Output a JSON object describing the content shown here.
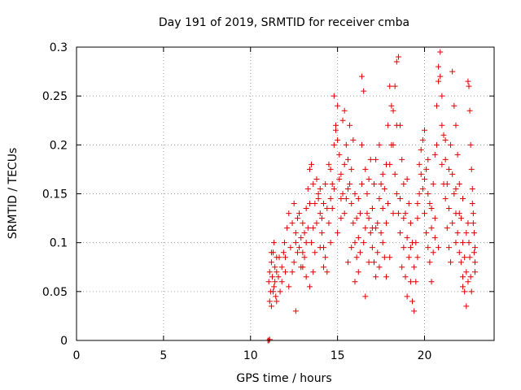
{
  "chart_data": {
    "type": "scatter",
    "title": "Day 191 of 2019, SRMTID for receiver cmba",
    "xlabel": "GPS time / hours",
    "ylabel": "SRMTID / TECUs",
    "xlim": [
      0,
      24
    ],
    "ylim": [
      0,
      0.3
    ],
    "x_ticks": [
      0,
      5,
      10,
      15,
      20
    ],
    "x_tick_labels": [
      "0",
      "5",
      "10",
      "15",
      "20"
    ],
    "y_ticks": [
      0,
      0.05,
      0.1,
      0.15,
      0.2,
      0.25,
      0.3
    ],
    "y_tick_labels": [
      "0",
      "0.05",
      "0.1",
      "0.15",
      "0.2",
      "0.25",
      "0.3"
    ],
    "grid": true,
    "marker": "plus",
    "color": "#e00000",
    "x_range_of_points": [
      11.0,
      22.9
    ],
    "points": [
      [
        11.0,
        0.0
      ],
      [
        11.05,
        0.0
      ],
      [
        11.1,
        0.001
      ],
      [
        11.05,
        0.06
      ],
      [
        11.1,
        0.07
      ],
      [
        11.15,
        0.05
      ],
      [
        11.2,
        0.08
      ],
      [
        11.25,
        0.065
      ],
      [
        11.3,
        0.09
      ],
      [
        11.35,
        0.055
      ],
      [
        11.4,
        0.075
      ],
      [
        11.45,
        0.045
      ],
      [
        11.5,
        0.07
      ],
      [
        11.1,
        0.04
      ],
      [
        11.2,
        0.035
      ],
      [
        11.3,
        0.05
      ],
      [
        11.4,
        0.06
      ],
      [
        11.5,
        0.085
      ],
      [
        11.6,
        0.065
      ],
      [
        11.7,
        0.05
      ],
      [
        11.8,
        0.075
      ],
      [
        11.9,
        0.09
      ],
      [
        12.0,
        0.07
      ],
      [
        11.2,
        0.09
      ],
      [
        11.35,
        0.1
      ],
      [
        11.5,
        0.04
      ],
      [
        11.65,
        0.085
      ],
      [
        11.8,
        0.06
      ],
      [
        11.95,
        0.1
      ],
      [
        12.1,
        0.115
      ],
      [
        12.2,
        0.13
      ],
      [
        12.3,
        0.095
      ],
      [
        12.4,
        0.12
      ],
      [
        12.5,
        0.14
      ],
      [
        12.6,
        0.11
      ],
      [
        12.7,
        0.09
      ],
      [
        12.8,
        0.13
      ],
      [
        12.9,
        0.105
      ],
      [
        13.0,
        0.12
      ],
      [
        13.1,
        0.085
      ],
      [
        13.2,
        0.1
      ],
      [
        13.3,
        0.115
      ],
      [
        13.4,
        0.14
      ],
      [
        12.5,
        0.08
      ],
      [
        12.6,
        0.1
      ],
      [
        12.7,
        0.125
      ],
      [
        12.8,
        0.095
      ],
      [
        12.9,
        0.075
      ],
      [
        13.0,
        0.09
      ],
      [
        13.1,
        0.11
      ],
      [
        13.2,
        0.135
      ],
      [
        13.3,
        0.155
      ],
      [
        13.4,
        0.175
      ],
      [
        13.5,
        0.18
      ],
      [
        13.6,
        0.16
      ],
      [
        13.7,
        0.14
      ],
      [
        13.8,
        0.12
      ],
      [
        13.9,
        0.15
      ],
      [
        14.0,
        0.13
      ],
      [
        14.1,
        0.11
      ],
      [
        14.2,
        0.095
      ],
      [
        14.3,
        0.085
      ],
      [
        14.4,
        0.07
      ],
      [
        13.5,
        0.1
      ],
      [
        13.6,
        0.115
      ],
      [
        13.7,
        0.09
      ],
      [
        13.8,
        0.165
      ],
      [
        13.9,
        0.145
      ],
      [
        14.0,
        0.155
      ],
      [
        14.1,
        0.125
      ],
      [
        14.2,
        0.14
      ],
      [
        14.3,
        0.16
      ],
      [
        14.4,
        0.135
      ],
      [
        14.5,
        0.12
      ],
      [
        14.6,
        0.145
      ],
      [
        14.7,
        0.16
      ],
      [
        14.8,
        0.2
      ],
      [
        14.9,
        0.22
      ],
      [
        15.0,
        0.24
      ],
      [
        15.1,
        0.19
      ],
      [
        15.2,
        0.17
      ],
      [
        15.3,
        0.15
      ],
      [
        15.4,
        0.13
      ],
      [
        14.5,
        0.18
      ],
      [
        14.6,
        0.175
      ],
      [
        14.7,
        0.135
      ],
      [
        14.8,
        0.25
      ],
      [
        14.9,
        0.215
      ],
      [
        15.0,
        0.205
      ],
      [
        15.1,
        0.165
      ],
      [
        15.2,
        0.145
      ],
      [
        15.3,
        0.225
      ],
      [
        15.4,
        0.235
      ],
      [
        15.5,
        0.2
      ],
      [
        15.6,
        0.185
      ],
      [
        15.7,
        0.16
      ],
      [
        15.8,
        0.14
      ],
      [
        15.9,
        0.12
      ],
      [
        16.0,
        0.1
      ],
      [
        16.1,
        0.085
      ],
      [
        16.2,
        0.07
      ],
      [
        16.3,
        0.13
      ],
      [
        16.4,
        0.16
      ],
      [
        15.5,
        0.145
      ],
      [
        15.6,
        0.155
      ],
      [
        15.7,
        0.22
      ],
      [
        15.8,
        0.175
      ],
      [
        15.9,
        0.205
      ],
      [
        16.0,
        0.15
      ],
      [
        16.1,
        0.125
      ],
      [
        16.2,
        0.105
      ],
      [
        16.3,
        0.09
      ],
      [
        16.4,
        0.27
      ],
      [
        16.5,
        0.255
      ],
      [
        16.6,
        0.175
      ],
      [
        16.7,
        0.15
      ],
      [
        16.8,
        0.125
      ],
      [
        16.9,
        0.11
      ],
      [
        17.0,
        0.095
      ],
      [
        17.1,
        0.08
      ],
      [
        17.2,
        0.065
      ],
      [
        17.3,
        0.12
      ],
      [
        17.4,
        0.145
      ],
      [
        16.5,
        0.1
      ],
      [
        16.6,
        0.045
      ],
      [
        16.7,
        0.13
      ],
      [
        16.8,
        0.165
      ],
      [
        16.9,
        0.185
      ],
      [
        17.0,
        0.135
      ],
      [
        17.1,
        0.16
      ],
      [
        17.2,
        0.115
      ],
      [
        17.3,
        0.09
      ],
      [
        17.4,
        0.075
      ],
      [
        17.5,
        0.11
      ],
      [
        17.6,
        0.135
      ],
      [
        17.7,
        0.155
      ],
      [
        17.8,
        0.18
      ],
      [
        17.9,
        0.22
      ],
      [
        18.0,
        0.26
      ],
      [
        18.1,
        0.24
      ],
      [
        18.2,
        0.2
      ],
      [
        18.3,
        0.17
      ],
      [
        18.4,
        0.15
      ],
      [
        17.5,
        0.16
      ],
      [
        17.6,
        0.1
      ],
      [
        17.7,
        0.085
      ],
      [
        17.8,
        0.12
      ],
      [
        17.9,
        0.14
      ],
      [
        18.0,
        0.18
      ],
      [
        18.1,
        0.2
      ],
      [
        18.2,
        0.235
      ],
      [
        18.3,
        0.26
      ],
      [
        18.4,
        0.285
      ],
      [
        18.5,
        0.29
      ],
      [
        18.6,
        0.22
      ],
      [
        18.7,
        0.185
      ],
      [
        18.8,
        0.16
      ],
      [
        18.9,
        0.13
      ],
      [
        19.0,
        0.105
      ],
      [
        19.1,
        0.085
      ],
      [
        19.2,
        0.06
      ],
      [
        19.3,
        0.04
      ],
      [
        19.4,
        0.03
      ],
      [
        18.5,
        0.13
      ],
      [
        18.6,
        0.11
      ],
      [
        18.7,
        0.075
      ],
      [
        18.8,
        0.095
      ],
      [
        18.9,
        0.065
      ],
      [
        19.0,
        0.045
      ],
      [
        19.1,
        0.14
      ],
      [
        19.2,
        0.12
      ],
      [
        19.3,
        0.1
      ],
      [
        19.4,
        0.075
      ],
      [
        19.5,
        0.1
      ],
      [
        19.6,
        0.125
      ],
      [
        19.7,
        0.15
      ],
      [
        19.8,
        0.17
      ],
      [
        19.9,
        0.155
      ],
      [
        20.0,
        0.13
      ],
      [
        20.1,
        0.11
      ],
      [
        20.2,
        0.095
      ],
      [
        20.3,
        0.08
      ],
      [
        20.4,
        0.06
      ],
      [
        19.5,
        0.06
      ],
      [
        19.6,
        0.085
      ],
      [
        19.7,
        0.18
      ],
      [
        19.8,
        0.195
      ],
      [
        19.9,
        0.205
      ],
      [
        20.0,
        0.215
      ],
      [
        20.1,
        0.175
      ],
      [
        20.2,
        0.15
      ],
      [
        20.3,
        0.14
      ],
      [
        20.4,
        0.115
      ],
      [
        20.5,
        0.16
      ],
      [
        20.6,
        0.19
      ],
      [
        20.7,
        0.24
      ],
      [
        20.8,
        0.28
      ],
      [
        20.9,
        0.295
      ],
      [
        21.0,
        0.25
      ],
      [
        21.1,
        0.21
      ],
      [
        21.2,
        0.185
      ],
      [
        21.3,
        0.16
      ],
      [
        21.4,
        0.135
      ],
      [
        20.5,
        0.09
      ],
      [
        20.6,
        0.125
      ],
      [
        20.7,
        0.2
      ],
      [
        20.8,
        0.265
      ],
      [
        20.9,
        0.27
      ],
      [
        21.0,
        0.22
      ],
      [
        21.1,
        0.16
      ],
      [
        21.2,
        0.145
      ],
      [
        21.3,
        0.115
      ],
      [
        21.4,
        0.095
      ],
      [
        21.5,
        0.2
      ],
      [
        21.6,
        0.17
      ],
      [
        21.7,
        0.15
      ],
      [
        21.8,
        0.13
      ],
      [
        21.9,
        0.11
      ],
      [
        22.0,
        0.09
      ],
      [
        22.1,
        0.08
      ],
      [
        22.2,
        0.065
      ],
      [
        22.3,
        0.05
      ],
      [
        22.4,
        0.035
      ],
      [
        21.5,
        0.08
      ],
      [
        21.6,
        0.275
      ],
      [
        21.7,
        0.24
      ],
      [
        21.8,
        0.22
      ],
      [
        21.9,
        0.19
      ],
      [
        22.0,
        0.16
      ],
      [
        22.1,
        0.125
      ],
      [
        22.2,
        0.1
      ],
      [
        22.3,
        0.085
      ],
      [
        22.4,
        0.07
      ],
      [
        22.5,
        0.265
      ],
      [
        22.55,
        0.26
      ],
      [
        22.6,
        0.235
      ],
      [
        22.65,
        0.2
      ],
      [
        22.7,
        0.175
      ],
      [
        22.75,
        0.155
      ],
      [
        22.8,
        0.13
      ],
      [
        22.85,
        0.11
      ],
      [
        22.9,
        0.095
      ],
      [
        22.9,
        0.08
      ],
      [
        22.5,
        0.12
      ],
      [
        22.55,
        0.1
      ],
      [
        22.6,
        0.085
      ],
      [
        22.65,
        0.065
      ],
      [
        22.7,
        0.05
      ],
      [
        22.75,
        0.14
      ],
      [
        22.8,
        0.12
      ],
      [
        22.85,
        0.09
      ],
      [
        22.9,
        0.07
      ],
      [
        22.5,
        0.06
      ],
      [
        13.0,
        0.075
      ],
      [
        13.2,
        0.065
      ],
      [
        13.4,
        0.055
      ],
      [
        13.6,
        0.07
      ],
      [
        14.0,
        0.095
      ],
      [
        14.2,
        0.075
      ],
      [
        15.0,
        0.11
      ],
      [
        15.2,
        0.125
      ],
      [
        15.6,
        0.08
      ],
      [
        16.0,
        0.06
      ],
      [
        16.2,
        0.145
      ],
      [
        16.6,
        0.115
      ],
      [
        17.0,
        0.115
      ],
      [
        17.2,
        0.185
      ],
      [
        17.6,
        0.17
      ],
      [
        18.2,
        0.13
      ],
      [
        18.6,
        0.145
      ],
      [
        18.8,
        0.125
      ],
      [
        19.2,
        0.095
      ],
      [
        19.6,
        0.14
      ],
      [
        20.0,
        0.165
      ],
      [
        20.2,
        0.185
      ],
      [
        20.6,
        0.105
      ],
      [
        21.0,
        0.18
      ],
      [
        21.2,
        0.205
      ],
      [
        21.6,
        0.12
      ],
      [
        21.8,
        0.1
      ],
      [
        22.0,
        0.13
      ],
      [
        22.2,
        0.145
      ],
      [
        22.4,
        0.11
      ],
      [
        12.6,
        0.03
      ],
      [
        12.0,
        0.085
      ],
      [
        12.2,
        0.055
      ],
      [
        12.4,
        0.07
      ],
      [
        14.6,
        0.1
      ],
      [
        15.8,
        0.095
      ],
      [
        16.8,
        0.08
      ],
      [
        17.8,
        0.065
      ],
      [
        18.0,
        0.085
      ],
      [
        19.0,
        0.165
      ],
      [
        20.4,
        0.135
      ],
      [
        20.8,
        0.095
      ],
      [
        21.4,
        0.175
      ],
      [
        21.8,
        0.155
      ],
      [
        22.2,
        0.055
      ],
      [
        14.8,
        0.155
      ],
      [
        15.4,
        0.18
      ],
      [
        16.4,
        0.2
      ],
      [
        17.4,
        0.2
      ],
      [
        18.4,
        0.22
      ]
    ]
  }
}
